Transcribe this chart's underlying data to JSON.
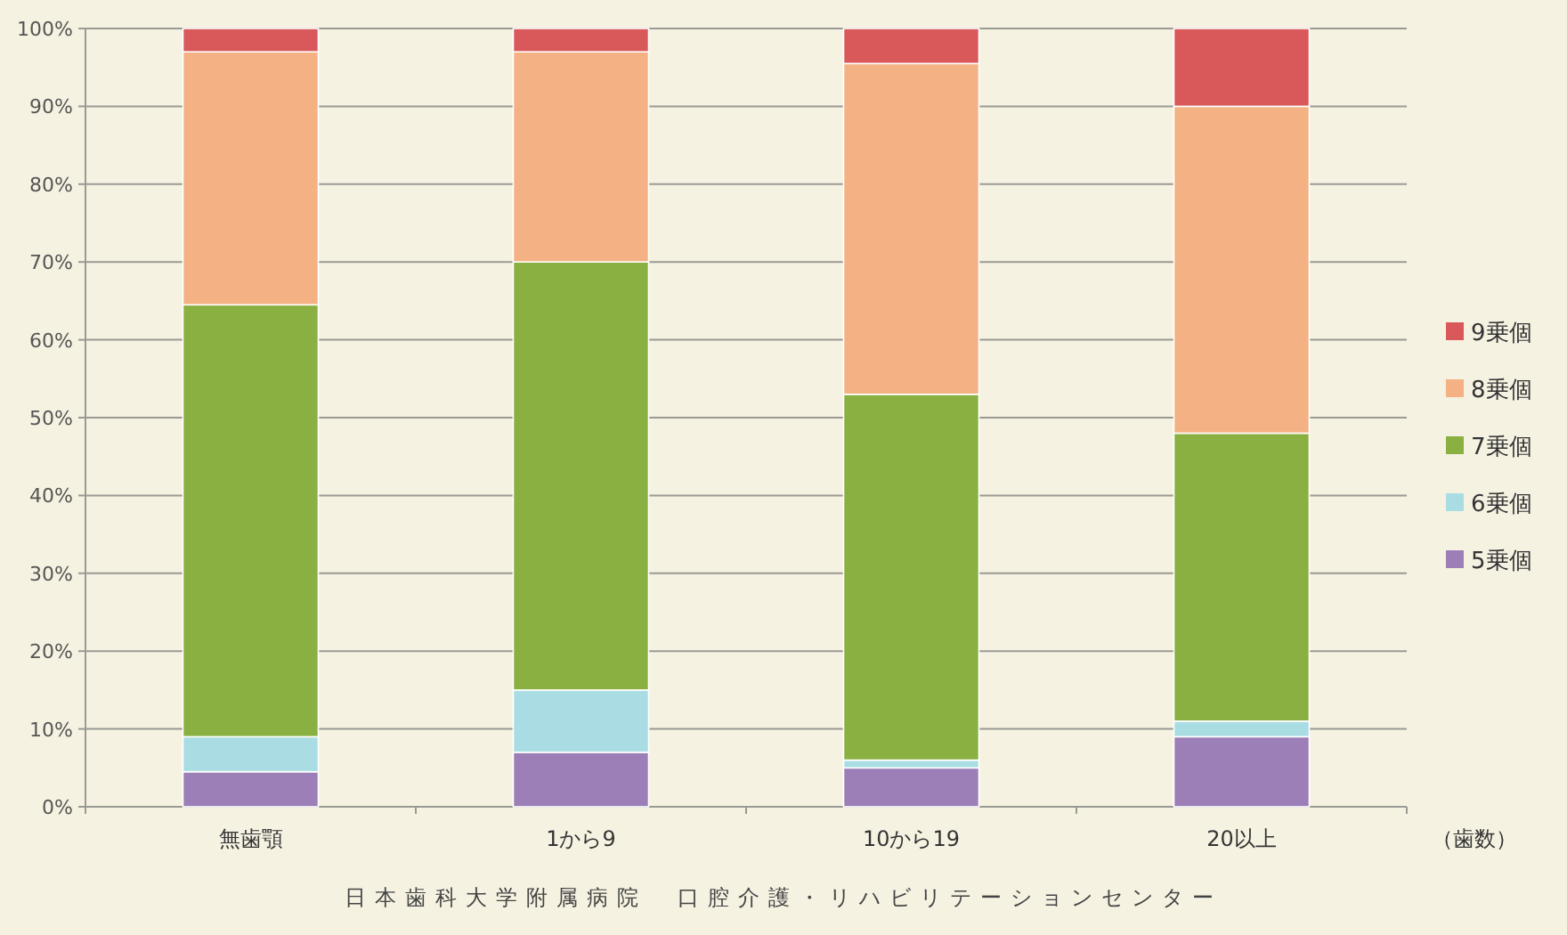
{
  "chart_data": {
    "type": "bar",
    "stacked": true,
    "categories": [
      "無歯顎",
      "1から9",
      "10から19",
      "20以上"
    ],
    "xlabel": "（歯数）",
    "series": [
      {
        "name": "5乗個",
        "color": "#9b7fb6",
        "values": [
          4.5,
          7,
          5,
          9
        ]
      },
      {
        "name": "6乗個",
        "color": "#a9dde3",
        "values": [
          4.5,
          8,
          1,
          2
        ]
      },
      {
        "name": "7乗個",
        "color": "#8ab042",
        "values": [
          55.5,
          55,
          47,
          37
        ]
      },
      {
        "name": "8乗個",
        "color": "#f4b183",
        "values": [
          32.5,
          27,
          42.5,
          42
        ]
      },
      {
        "name": "9乗個",
        "color": "#d9585a",
        "values": [
          3,
          3,
          4.5,
          10
        ]
      }
    ],
    "ylim": [
      0,
      100
    ],
    "yticks": [
      {
        "value": 0,
        "label": "0%"
      },
      {
        "value": 10,
        "label": "10%"
      },
      {
        "value": 20,
        "label": "20%"
      },
      {
        "value": 30,
        "label": "30%"
      },
      {
        "value": 40,
        "label": "40%"
      },
      {
        "value": 50,
        "label": "50%"
      },
      {
        "value": 60,
        "label": "60%"
      },
      {
        "value": 70,
        "label": "70%"
      },
      {
        "value": 80,
        "label": "80%"
      },
      {
        "value": 90,
        "label": "90%"
      },
      {
        "value": 100,
        "label": "100%"
      }
    ],
    "grid": "y",
    "legend": "right",
    "annotations": [
      "日本歯科大学附属病院　口腔介護・リハビリテーションセンター"
    ]
  }
}
